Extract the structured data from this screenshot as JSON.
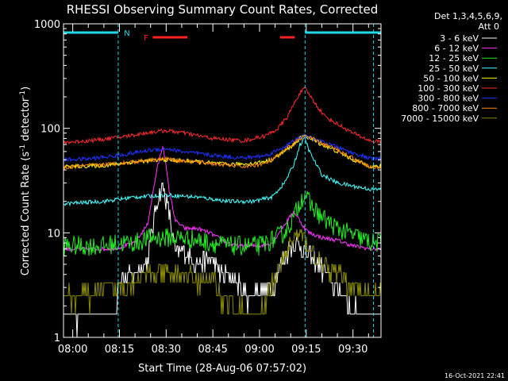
{
  "chart_data": {
    "type": "line",
    "title": "RHESSI Observing Summary Count Rates, Corrected",
    "xlabel": "Start Time (28-Aug-06 07:57:02)",
    "ylabel": "Corrected Count Rate (s",
    "ylabel_sup1": "-1",
    "ylabel_mid": " detector",
    "ylabel_sup2": "-1",
    "ylabel_end": ")",
    "y_scale": "log",
    "ylim": [
      1,
      1000
    ],
    "xlim_min": [
      -2.97,
      99.0
    ],
    "x_ticks": [
      {
        "label": "08:00",
        "min": 0
      },
      {
        "label": "08:15",
        "min": 15
      },
      {
        "label": "08:30",
        "min": 30
      },
      {
        "label": "08:45",
        "min": 45
      },
      {
        "label": "09:00",
        "min": 60
      },
      {
        "label": "09:15",
        "min": 75
      },
      {
        "label": "09:30",
        "min": 90
      }
    ],
    "y_ticks": [
      {
        "label": "1",
        "v": 1
      },
      {
        "label": "10",
        "v": 10
      },
      {
        "label": "100",
        "v": 100
      },
      {
        "label": "1000",
        "v": 1000
      }
    ],
    "legend_header": [
      "Det 1,3,4,5,6,9,",
      "Att 0"
    ],
    "timestamp": "16-Oct-2021 22:41",
    "annotations": {
      "night_label": "N",
      "flare_label": "F"
    },
    "bars": [
      {
        "kind": "night",
        "color": "#22d7e8",
        "spans": [
          [
            -2.97,
            14.6
          ],
          [
            74.6,
            99.0
          ]
        ]
      },
      {
        "kind": "flare",
        "color": "#ff2020",
        "spans": [
          [
            25.7,
            36.8
          ],
          [
            66.6,
            71.3
          ]
        ]
      }
    ],
    "dashed_verticals": [
      14.6,
      74.6,
      96.6
    ],
    "series": [
      {
        "name": "3 - 6 keV",
        "color": "#ffffff",
        "x": [
          -2.97,
          3,
          10,
          14,
          14.6,
          20,
          24,
          27,
          29,
          31,
          33,
          36,
          40,
          44,
          48,
          52,
          56,
          60,
          64,
          68,
          71,
          73,
          74.5,
          76,
          80,
          85,
          90,
          94,
          96
        ],
        "y": [
          1.6,
          1.5,
          1.6,
          1.5,
          3.5,
          4.0,
          5.5,
          20,
          28,
          15,
          6.5,
          6.5,
          5.0,
          5.5,
          4.0,
          3.5,
          2.5,
          2.8,
          3.0,
          6.0,
          8.0,
          7.5,
          6.5,
          6.0,
          4.5,
          3.0,
          1.8,
          1.6,
          1.6
        ]
      },
      {
        "name": "6 - 12 keV",
        "color": "#ff33ff",
        "x": [
          -2.97,
          10,
          14.6,
          20,
          24,
          27,
          29,
          31,
          33,
          36,
          40,
          44,
          48,
          52,
          56,
          60,
          64,
          68,
          71,
          73,
          74.5,
          76,
          80,
          85,
          90,
          96
        ],
        "y": [
          7.0,
          7.0,
          7.2,
          8.0,
          12,
          40,
          70,
          25,
          13,
          11,
          11,
          10,
          8.5,
          7.5,
          7.5,
          7.5,
          8.0,
          12,
          16,
          13,
          11,
          10,
          9.0,
          8.5,
          7.5,
          7.0
        ]
      },
      {
        "name": "12 - 25 keV",
        "color": "#22ee22",
        "x": [
          -2.97,
          10,
          14.6,
          20,
          25,
          30,
          35,
          40,
          45,
          50,
          55,
          60,
          64,
          68,
          71,
          73,
          74.6,
          76,
          80,
          85,
          90,
          96
        ],
        "y": [
          7.5,
          7.5,
          8.0,
          8.0,
          9.0,
          9.0,
          9.0,
          8.5,
          8.0,
          7.5,
          7.5,
          7.5,
          8.5,
          10,
          14,
          20,
          24,
          19,
          14,
          11,
          9.5,
          8.0
        ]
      },
      {
        "name": "25 - 50 keV",
        "color": "#44ffff",
        "x": [
          -2.97,
          10,
          20,
          30,
          40,
          50,
          58,
          64,
          68,
          71,
          73,
          74.6,
          76,
          80,
          85,
          90,
          96
        ],
        "y": [
          19,
          20,
          22,
          23,
          22,
          20,
          20,
          22,
          30,
          45,
          70,
          80,
          60,
          36,
          30,
          28,
          26
        ]
      },
      {
        "name": "50 - 100 keV",
        "color": "#ffff00",
        "x": [
          -2.97,
          10,
          20,
          30,
          40,
          50,
          58,
          64,
          68,
          71,
          73,
          74.6,
          76,
          80,
          85,
          90,
          96
        ],
        "y": [
          43,
          44,
          48,
          50,
          48,
          45,
          46,
          50,
          60,
          70,
          80,
          85,
          80,
          70,
          60,
          50,
          43
        ]
      },
      {
        "name": "100 - 300 keV",
        "color": "#ff2a2a",
        "x": [
          -2.97,
          5,
          15,
          25,
          30,
          35,
          45,
          55,
          62,
          66,
          69,
          71,
          73,
          74.6,
          76,
          78,
          81,
          85,
          90,
          96
        ],
        "y": [
          73,
          76,
          82,
          92,
          95,
          91,
          80,
          76,
          85,
          100,
          130,
          170,
          220,
          240,
          210,
          170,
          130,
          110,
          90,
          75
        ]
      },
      {
        "name": "300 - 800 keV",
        "color": "#1e33ff",
        "x": [
          -2.97,
          5,
          15,
          25,
          30,
          35,
          45,
          55,
          62,
          66,
          70,
          73,
          74.6,
          76,
          80,
          85,
          90,
          96
        ],
        "y": [
          50,
          51,
          55,
          62,
          64,
          60,
          55,
          52,
          55,
          62,
          72,
          82,
          85,
          82,
          74,
          66,
          58,
          51
        ]
      },
      {
        "name": "800 - 7000 keV",
        "color": "#ff8c00",
        "x": [
          -2.97,
          5,
          15,
          25,
          30,
          35,
          45,
          55,
          62,
          66,
          70,
          73,
          74.6,
          76,
          80,
          85,
          90,
          96
        ],
        "y": [
          42,
          44,
          46,
          50,
          51,
          49,
          46,
          43,
          46,
          55,
          68,
          80,
          84,
          82,
          72,
          62,
          52,
          42
        ]
      },
      {
        "name": "7000 - 15000 keV",
        "color": "#8b8b00",
        "x": [
          -2.97,
          5,
          14.6,
          20,
          25,
          30,
          35,
          40,
          45,
          48,
          52,
          56,
          60,
          64,
          68,
          71,
          73,
          74.5,
          76,
          80,
          85,
          90,
          96
        ],
        "y": [
          2.5,
          2.5,
          3.0,
          3.5,
          4.0,
          4.0,
          4.0,
          3.5,
          3.5,
          2.5,
          2.0,
          1.6,
          1.6,
          3.0,
          6.0,
          9.0,
          9.5,
          8.5,
          7.0,
          5.0,
          4.0,
          3.0,
          2.5
        ]
      }
    ]
  }
}
